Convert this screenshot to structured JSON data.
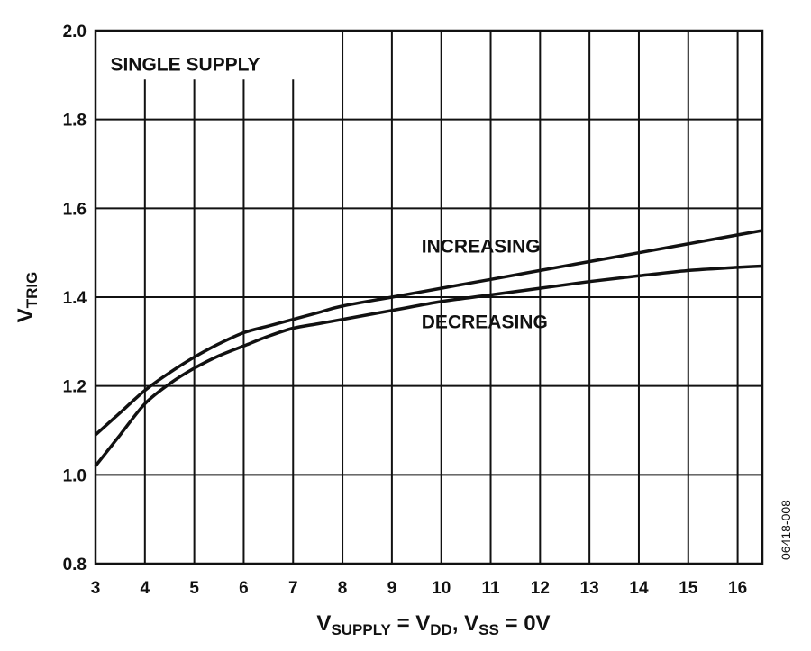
{
  "chart_data": {
    "type": "line",
    "xlim": [
      3,
      16.5
    ],
    "ylim": [
      0.8,
      2.0
    ],
    "x_ticks": [
      "3",
      "4",
      "5",
      "6",
      "7",
      "8",
      "9",
      "10",
      "11",
      "12",
      "13",
      "14",
      "15",
      "16"
    ],
    "y_ticks": [
      "0.8",
      "1.0",
      "1.2",
      "1.4",
      "1.6",
      "1.8",
      "2.0"
    ],
    "grid": "vertical",
    "xlabel": {
      "parts": [
        {
          "text": "V",
          "sub": false
        },
        {
          "text": "SUPPLY",
          "sub": true
        },
        {
          "text": " = V",
          "sub": false
        },
        {
          "text": "DD",
          "sub": true
        },
        {
          "text": ", V",
          "sub": false
        },
        {
          "text": "SS",
          "sub": true
        },
        {
          "text": " = 0V",
          "sub": false
        }
      ]
    },
    "ylabel": {
      "parts": [
        {
          "text": "V",
          "sub": false
        },
        {
          "text": "TRIG",
          "sub": true
        }
      ]
    },
    "annotations": [
      {
        "text": "SINGLE SUPPLY",
        "x": 3.3,
        "y": 1.91
      },
      {
        "text": "INCREASING",
        "x": 9.6,
        "y": 1.5
      },
      {
        "text": "DECREASING",
        "x": 9.6,
        "y": 1.33
      }
    ],
    "figure_id": "06418-008",
    "series": [
      {
        "name": "INCREASING",
        "x": [
          3,
          3.5,
          4,
          4.5,
          5,
          5.5,
          6,
          6.5,
          7,
          7.5,
          8,
          9,
          10,
          11,
          12,
          13,
          14,
          15,
          16,
          16.5
        ],
        "y": [
          1.09,
          1.14,
          1.19,
          1.23,
          1.265,
          1.295,
          1.32,
          1.335,
          1.35,
          1.365,
          1.38,
          1.4,
          1.42,
          1.44,
          1.46,
          1.48,
          1.5,
          1.52,
          1.54,
          1.55
        ]
      },
      {
        "name": "DECREASING",
        "x": [
          3,
          3.5,
          4,
          4.5,
          5,
          5.5,
          6,
          6.5,
          7,
          7.5,
          8,
          9,
          10,
          11,
          12,
          13,
          14,
          15,
          16,
          16.5
        ],
        "y": [
          1.02,
          1.09,
          1.16,
          1.205,
          1.24,
          1.268,
          1.29,
          1.312,
          1.33,
          1.34,
          1.35,
          1.37,
          1.39,
          1.405,
          1.42,
          1.435,
          1.448,
          1.46,
          1.467,
          1.47
        ]
      }
    ]
  }
}
